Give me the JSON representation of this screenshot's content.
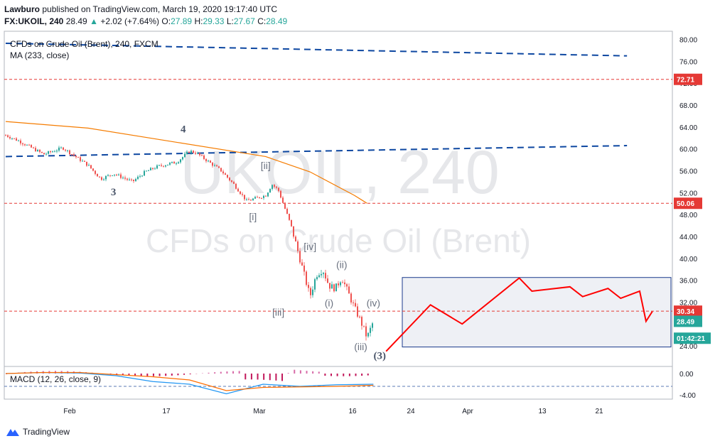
{
  "header": {
    "author": "Lawburo",
    "published_text": "published on TradingView.com, March 19, 2020 19:17:40 UTC",
    "symbol": "FX:UKOIL, 240",
    "last": "28.49",
    "change": "+2.02 (+7.64%)",
    "o_label": "O:",
    "o": "27.89",
    "h_label": "H:",
    "h": "29.33",
    "l_label": "L:",
    "l": "27.67",
    "c_label": "C:",
    "c": "28.49"
  },
  "legend": {
    "series_name": "CFDs on Crude Oil (Brent), 240, FXCM",
    "ma_label": "MA (233, close)",
    "macd_label": "MACD (12, 26, close, 9)"
  },
  "watermark": {
    "line1": "UKOIL, 240",
    "line2": "CFDs on Crude Oil (Brent)"
  },
  "footer": {
    "brand": "TradingView"
  },
  "colors": {
    "up": "#26a69a",
    "down": "#ef5350",
    "ma": "#f57c00",
    "trend": "#0d47a1",
    "level": "#e53935",
    "projection": "#ff0000",
    "box_fill": "#eef0f5",
    "box_stroke": "#1a3a8c"
  },
  "chart_data": {
    "type": "line",
    "price_axis": {
      "ticks": [
        "80.00",
        "76.00",
        "72.00",
        "68.00",
        "64.00",
        "60.00",
        "56.00",
        "52.00",
        "48.00",
        "44.00",
        "40.00",
        "36.00",
        "32.00",
        "28.00",
        "24.00"
      ],
      "range": [
        20.5,
        81.5
      ]
    },
    "macd_axis": {
      "ticks": [
        "0.00",
        "-4.00"
      ]
    },
    "time_axis": {
      "ticks": [
        "Feb",
        "17",
        "Mar",
        "16",
        "24",
        "Apr",
        "13",
        "21"
      ]
    },
    "price_labels": [
      {
        "text": "72.71",
        "value": 72.71,
        "color": "#e53935"
      },
      {
        "text": "50.06",
        "value": 50.06,
        "color": "#e53935"
      },
      {
        "text": "30.34",
        "value": 30.34,
        "color": "#e53935"
      },
      {
        "text": "28.49",
        "value": 28.49,
        "color": "#26a69a"
      },
      {
        "text": "01:42:21",
        "value": 25.4,
        "color": "#26a69a"
      }
    ],
    "horizontal_levels": [
      72.71,
      50.06,
      30.34
    ],
    "price_path": [
      [
        "Jan 21",
        62.5
      ],
      [
        "Jan 23",
        61.5
      ],
      [
        "Jan 27",
        59.0
      ],
      [
        "Jan 30",
        60.2
      ],
      [
        "Feb 3",
        57.0
      ],
      [
        "Feb 5",
        54.5
      ],
      [
        "Feb 7",
        55.5
      ],
      [
        "Feb 10",
        54.0
      ],
      [
        "Feb 12",
        55.8
      ],
      [
        "Feb 14",
        56.8
      ],
      [
        "Feb 17",
        57.6
      ],
      [
        "Feb 19",
        59.6
      ],
      [
        "Feb 20",
        59.3
      ],
      [
        "Feb 24",
        56.0
      ],
      [
        "Feb 26",
        53.5
      ],
      [
        "Feb 28",
        50.5
      ],
      [
        "Mar 2",
        51.5
      ],
      [
        "Mar 3",
        53.5
      ],
      [
        "Mar 4",
        52.5
      ],
      [
        "Mar 6",
        46.0
      ],
      [
        "Mar 9",
        33.0
      ],
      [
        "Mar 10",
        37.0
      ],
      [
        "Mar 11",
        38.0
      ],
      [
        "Mar 12",
        35.0
      ],
      [
        "Mar 13",
        34.5
      ],
      [
        "Mar 14",
        36.5
      ],
      [
        "Mar 16",
        31.0
      ],
      [
        "Mar 17",
        28.5
      ],
      [
        "Mar 18",
        25.5
      ],
      [
        "Mar 19",
        28.5
      ]
    ],
    "moving_average_233": [
      [
        "Jan 21",
        65.0
      ],
      [
        "Feb 3",
        63.8
      ],
      [
        "Feb 17",
        61.2
      ],
      [
        "Mar 2",
        58.6
      ],
      [
        "Mar 9",
        55.8
      ],
      [
        "Mar 16",
        51.5
      ],
      [
        "Mar 18",
        50.06
      ]
    ],
    "trendlines": [
      {
        "from": [
          "Jan 21",
          79.3
        ],
        "to": [
          "Apr 28",
          77.0
        ]
      },
      {
        "from": [
          "Jan 21",
          58.6
        ],
        "to": [
          "Apr 28",
          60.6
        ]
      }
    ],
    "projection": [
      [
        "Mar 21",
        23.0
      ],
      [
        "Mar 28",
        31.5
      ],
      [
        "Apr 2",
        28.0
      ],
      [
        "Apr 11",
        36.4
      ],
      [
        "Apr 13",
        34.0
      ],
      [
        "Apr 19",
        34.8
      ],
      [
        "Apr 21",
        33.0
      ],
      [
        "Apr 25",
        34.5
      ],
      [
        "Apr 27",
        32.7
      ],
      [
        "Apr 30",
        34.0
      ],
      [
        "Apr 31",
        28.5
      ],
      [
        "Apr 32",
        30.3
      ]
    ],
    "target_box": {
      "price_top": 36.5,
      "price_bottom": 23.8
    },
    "wave_labels": [
      {
        "text": "4",
        "date": "Feb 18",
        "price": 63.0
      },
      {
        "text": "3",
        "date": "Feb 7",
        "price": 51.5
      },
      {
        "text": "[ii]",
        "date": "Mar 2",
        "price": 56.3
      },
      {
        "text": "[i]",
        "date": "Feb 29",
        "price": 47.0
      },
      {
        "text": "[iv]",
        "date": "Mar 9",
        "price": 41.5
      },
      {
        "text": "[iii]",
        "date": "Mar 4",
        "price": 29.5
      },
      {
        "text": "(ii)",
        "date": "Mar 14",
        "price": 38.2
      },
      {
        "text": "(i)",
        "date": "Mar 12",
        "price": 31.2
      },
      {
        "text": "(iv)",
        "date": "Mar 19",
        "price": 31.2
      },
      {
        "text": "(iii)",
        "date": "Mar 17",
        "price": 23.2
      },
      {
        "text": "(3)",
        "date": "Mar 20",
        "price": 21.6
      }
    ],
    "macd": {
      "macd_line": [
        0.0,
        0.2,
        0.1,
        -0.4,
        -1.5,
        -2.0,
        -3.8,
        -2.0,
        -2.4,
        -2.1,
        -2.0
      ],
      "signal_line": [
        0.0,
        0.2,
        0.2,
        -0.2,
        -0.6,
        -1.2,
        -3.2,
        -2.6,
        -2.5,
        -2.4,
        -2.2
      ],
      "zero_dashed_level": -2.4
    }
  }
}
